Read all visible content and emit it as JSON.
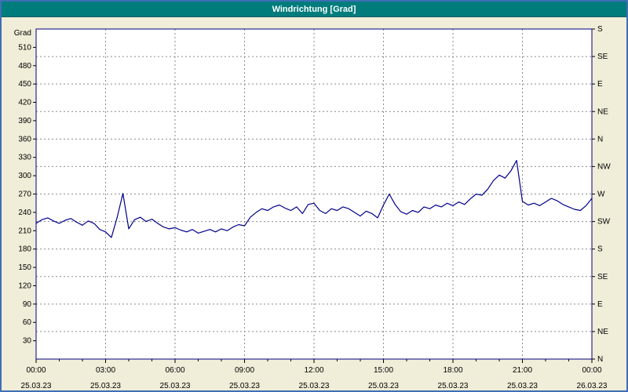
{
  "window": {
    "title": "Windrichtung [Grad]"
  },
  "colors": {
    "frame_border": "#3f6fb5",
    "background": "#f0edd8",
    "titlebar_bg": "#007c7c",
    "titlebar_text": "#ffffff",
    "plot_bg": "#ffffff",
    "plot_border": "#000080",
    "grid": "#8a8a8a",
    "axis_text": "#000000",
    "line": "#00008b"
  },
  "chart_data": {
    "type": "line",
    "title": "Windrichtung [Grad]",
    "xlabel": "",
    "ylabel": "Grad",
    "y_left": {
      "unit_label": "Grad",
      "min": 0,
      "max": 540,
      "tick_step": 30,
      "tick_values": [
        30,
        60,
        90,
        120,
        150,
        180,
        210,
        240,
        270,
        300,
        330,
        360,
        390,
        420,
        450,
        480,
        510
      ]
    },
    "y_right": {
      "tick_step": 45,
      "ticks": [
        {
          "value": 0,
          "label": "N"
        },
        {
          "value": 45,
          "label": "NE"
        },
        {
          "value": 90,
          "label": "E"
        },
        {
          "value": 135,
          "label": "SE"
        },
        {
          "value": 180,
          "label": "S"
        },
        {
          "value": 225,
          "label": "SW"
        },
        {
          "value": 270,
          "label": "W"
        },
        {
          "value": 315,
          "label": "NW"
        },
        {
          "value": 360,
          "label": "N"
        },
        {
          "value": 405,
          "label": "NE"
        },
        {
          "value": 450,
          "label": "E"
        },
        {
          "value": 495,
          "label": "SE"
        },
        {
          "value": 540,
          "label": "S"
        }
      ]
    },
    "x_axis": {
      "min_hour": 0,
      "max_hour": 24,
      "major_tick_step_hours": 3,
      "minor_tick_step_hours": 1,
      "ticks": [
        {
          "hour": 0,
          "time": "00:00",
          "date": "25.03.23"
        },
        {
          "hour": 3,
          "time": "03:00",
          "date": "25.03.23"
        },
        {
          "hour": 6,
          "time": "06:00",
          "date": "25.03.23"
        },
        {
          "hour": 9,
          "time": "09:00",
          "date": "25.03.23"
        },
        {
          "hour": 12,
          "time": "12:00",
          "date": "25.03.23"
        },
        {
          "hour": 15,
          "time": "15:00",
          "date": "25.03.23"
        },
        {
          "hour": 18,
          "time": "18:00",
          "date": "25.03.23"
        },
        {
          "hour": 21,
          "time": "21:00",
          "date": "25.03.23"
        },
        {
          "hour": 24,
          "time": "00:00",
          "date": "26.03.23"
        }
      ]
    },
    "grid": {
      "horizontal_step_deg": 45,
      "vertical_step_hours": 3,
      "style": "dashed"
    },
    "series": [
      {
        "name": "Windrichtung",
        "color": "#00008b",
        "x_start_hour": 0,
        "x_step_hours": 0.25,
        "values": [
          222,
          228,
          231,
          226,
          222,
          227,
          230,
          224,
          219,
          226,
          222,
          212,
          208,
          199,
          232,
          271,
          213,
          228,
          232,
          225,
          229,
          222,
          216,
          213,
          215,
          211,
          208,
          212,
          206,
          209,
          212,
          208,
          213,
          210,
          216,
          220,
          218,
          232,
          240,
          246,
          243,
          249,
          252,
          247,
          243,
          249,
          238,
          253,
          255,
          243,
          238,
          246,
          243,
          249,
          246,
          240,
          234,
          242,
          238,
          231,
          252,
          270,
          253,
          241,
          237,
          243,
          240,
          249,
          246,
          252,
          249,
          255,
          251,
          257,
          253,
          262,
          270,
          268,
          278,
          292,
          301,
          296,
          308,
          325,
          258,
          252,
          255,
          251,
          257,
          263,
          259,
          253,
          249,
          245,
          243,
          251,
          263
        ]
      }
    ]
  }
}
